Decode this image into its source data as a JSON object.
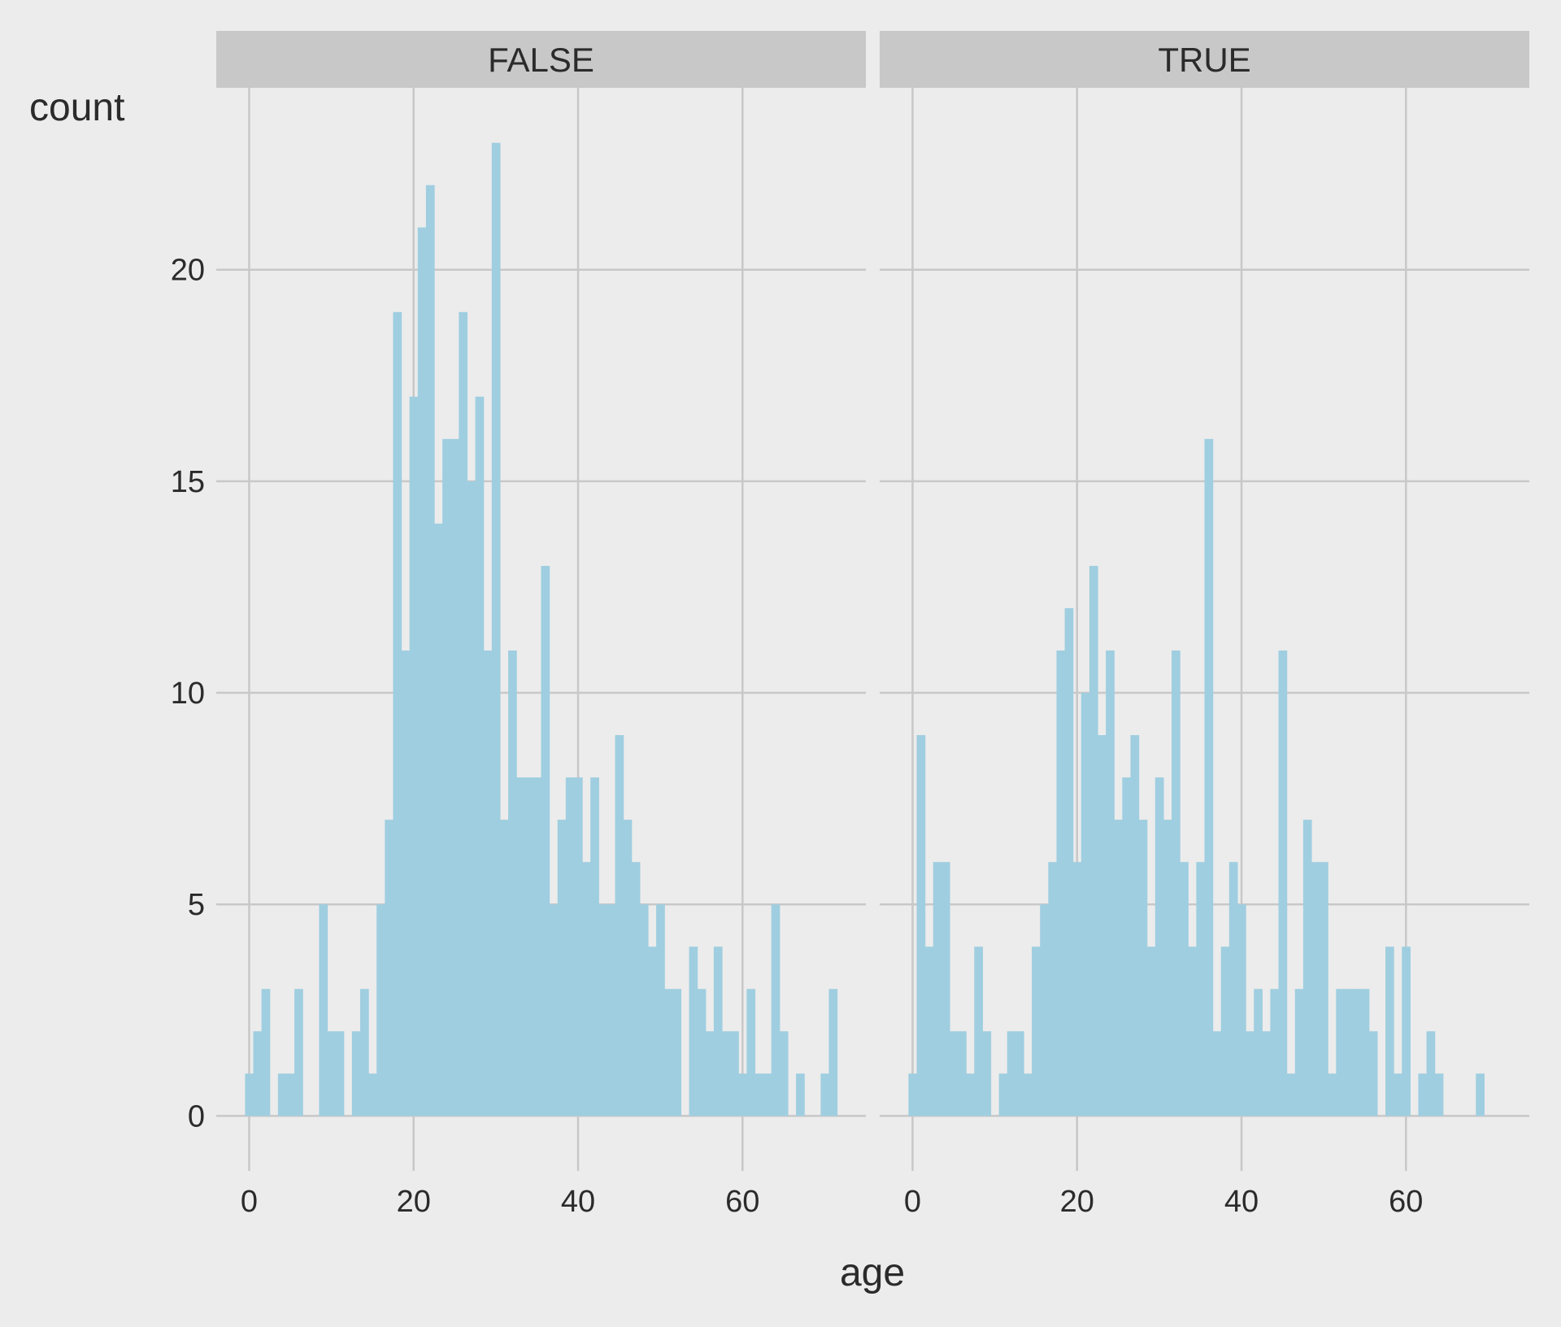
{
  "chart_data": {
    "type": "bar",
    "xlabel": "age",
    "ylabel": "count",
    "xlim": [
      -4,
      75
    ],
    "ylim": [
      -1.3,
      24.3
    ],
    "x_ticks": [
      0,
      20,
      40,
      60
    ],
    "y_ticks": [
      0,
      5,
      10,
      15,
      20
    ],
    "bin_width": 1,
    "grid": true,
    "colors": {
      "background": "#ececec",
      "panel": "#ececec",
      "grid": "#c8c8c8",
      "strip": "#c8c8c8",
      "bar": "#9fcee0",
      "text": "#2b2b2b"
    },
    "panels": [
      {
        "label": "FALSE",
        "bins": [
          {
            "x": 0,
            "y": 1
          },
          {
            "x": 1,
            "y": 2
          },
          {
            "x": 2,
            "y": 3
          },
          {
            "x": 4,
            "y": 1
          },
          {
            "x": 5,
            "y": 1
          },
          {
            "x": 6,
            "y": 3
          },
          {
            "x": 9,
            "y": 5
          },
          {
            "x": 10,
            "y": 2
          },
          {
            "x": 11,
            "y": 2
          },
          {
            "x": 13,
            "y": 2
          },
          {
            "x": 14,
            "y": 3
          },
          {
            "x": 15,
            "y": 1
          },
          {
            "x": 16,
            "y": 5
          },
          {
            "x": 17,
            "y": 7
          },
          {
            "x": 18,
            "y": 19
          },
          {
            "x": 19,
            "y": 11
          },
          {
            "x": 20,
            "y": 17
          },
          {
            "x": 21,
            "y": 21
          },
          {
            "x": 22,
            "y": 22
          },
          {
            "x": 23,
            "y": 14
          },
          {
            "x": 24,
            "y": 16
          },
          {
            "x": 25,
            "y": 16
          },
          {
            "x": 26,
            "y": 19
          },
          {
            "x": 27,
            "y": 15
          },
          {
            "x": 28,
            "y": 17
          },
          {
            "x": 29,
            "y": 11
          },
          {
            "x": 30,
            "y": 23
          },
          {
            "x": 31,
            "y": 7
          },
          {
            "x": 32,
            "y": 11
          },
          {
            "x": 33,
            "y": 8
          },
          {
            "x": 34,
            "y": 8
          },
          {
            "x": 35,
            "y": 8
          },
          {
            "x": 36,
            "y": 13
          },
          {
            "x": 37,
            "y": 5
          },
          {
            "x": 38,
            "y": 7
          },
          {
            "x": 39,
            "y": 8
          },
          {
            "x": 40,
            "y": 8
          },
          {
            "x": 41,
            "y": 6
          },
          {
            "x": 42,
            "y": 8
          },
          {
            "x": 43,
            "y": 5
          },
          {
            "x": 44,
            "y": 5
          },
          {
            "x": 45,
            "y": 9
          },
          {
            "x": 46,
            "y": 7
          },
          {
            "x": 47,
            "y": 6
          },
          {
            "x": 48,
            "y": 5
          },
          {
            "x": 49,
            "y": 4
          },
          {
            "x": 50,
            "y": 5
          },
          {
            "x": 51,
            "y": 3
          },
          {
            "x": 52,
            "y": 3
          },
          {
            "x": 54,
            "y": 4
          },
          {
            "x": 55,
            "y": 3
          },
          {
            "x": 56,
            "y": 2
          },
          {
            "x": 57,
            "y": 4
          },
          {
            "x": 58,
            "y": 2
          },
          {
            "x": 59,
            "y": 2
          },
          {
            "x": 60,
            "y": 1
          },
          {
            "x": 61,
            "y": 3
          },
          {
            "x": 62,
            "y": 1
          },
          {
            "x": 63,
            "y": 1
          },
          {
            "x": 64,
            "y": 5
          },
          {
            "x": 65,
            "y": 2
          },
          {
            "x": 67,
            "y": 1
          },
          {
            "x": 70,
            "y": 1
          },
          {
            "x": 71,
            "y": 3
          }
        ]
      },
      {
        "label": "TRUE",
        "bins": [
          {
            "x": 0,
            "y": 1
          },
          {
            "x": 1,
            "y": 9
          },
          {
            "x": 2,
            "y": 4
          },
          {
            "x": 3,
            "y": 6
          },
          {
            "x": 4,
            "y": 6
          },
          {
            "x": 5,
            "y": 2
          },
          {
            "x": 6,
            "y": 2
          },
          {
            "x": 7,
            "y": 1
          },
          {
            "x": 8,
            "y": 4
          },
          {
            "x": 9,
            "y": 2
          },
          {
            "x": 11,
            "y": 1
          },
          {
            "x": 12,
            "y": 2
          },
          {
            "x": 13,
            "y": 2
          },
          {
            "x": 14,
            "y": 1
          },
          {
            "x": 15,
            "y": 4
          },
          {
            "x": 16,
            "y": 5
          },
          {
            "x": 17,
            "y": 6
          },
          {
            "x": 18,
            "y": 11
          },
          {
            "x": 19,
            "y": 12
          },
          {
            "x": 20,
            "y": 6
          },
          {
            "x": 21,
            "y": 10
          },
          {
            "x": 22,
            "y": 13
          },
          {
            "x": 23,
            "y": 9
          },
          {
            "x": 24,
            "y": 11
          },
          {
            "x": 25,
            "y": 7
          },
          {
            "x": 26,
            "y": 8
          },
          {
            "x": 27,
            "y": 9
          },
          {
            "x": 28,
            "y": 7
          },
          {
            "x": 29,
            "y": 4
          },
          {
            "x": 30,
            "y": 8
          },
          {
            "x": 31,
            "y": 7
          },
          {
            "x": 32,
            "y": 11
          },
          {
            "x": 33,
            "y": 6
          },
          {
            "x": 34,
            "y": 4
          },
          {
            "x": 35,
            "y": 6
          },
          {
            "x": 36,
            "y": 16
          },
          {
            "x": 37,
            "y": 2
          },
          {
            "x": 38,
            "y": 4
          },
          {
            "x": 39,
            "y": 6
          },
          {
            "x": 40,
            "y": 5
          },
          {
            "x": 41,
            "y": 2
          },
          {
            "x": 42,
            "y": 3
          },
          {
            "x": 43,
            "y": 2
          },
          {
            "x": 44,
            "y": 3
          },
          {
            "x": 45,
            "y": 11
          },
          {
            "x": 46,
            "y": 1
          },
          {
            "x": 47,
            "y": 3
          },
          {
            "x": 48,
            "y": 7
          },
          {
            "x": 49,
            "y": 6
          },
          {
            "x": 50,
            "y": 6
          },
          {
            "x": 51,
            "y": 1
          },
          {
            "x": 52,
            "y": 3
          },
          {
            "x": 53,
            "y": 3
          },
          {
            "x": 54,
            "y": 3
          },
          {
            "x": 55,
            "y": 3
          },
          {
            "x": 56,
            "y": 2
          },
          {
            "x": 58,
            "y": 4
          },
          {
            "x": 59,
            "y": 1
          },
          {
            "x": 60,
            "y": 4
          },
          {
            "x": 62,
            "y": 1
          },
          {
            "x": 63,
            "y": 2
          },
          {
            "x": 64,
            "y": 1
          },
          {
            "x": 69,
            "y": 1
          }
        ]
      }
    ]
  }
}
